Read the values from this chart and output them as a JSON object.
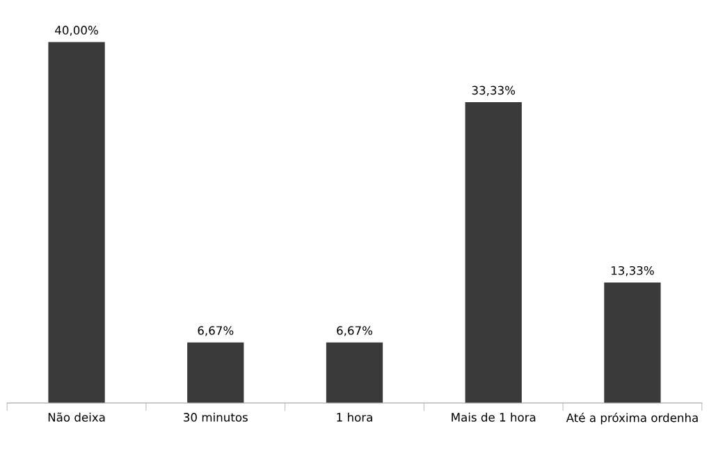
{
  "chart_data": {
    "type": "bar",
    "categories": [
      "Não deixa",
      "30 minutos",
      "1 hora",
      "Mais de 1 hora",
      "Até a próxima ordenha"
    ],
    "values": [
      40.0,
      6.67,
      6.67,
      33.33,
      13.33
    ],
    "value_labels": [
      "40,00%",
      "6,67%",
      "6,67%",
      "33,33%",
      "13,33%"
    ],
    "color": "#3a3a3a",
    "tick_labels": "x",
    "grid": false,
    "legend": false
  }
}
